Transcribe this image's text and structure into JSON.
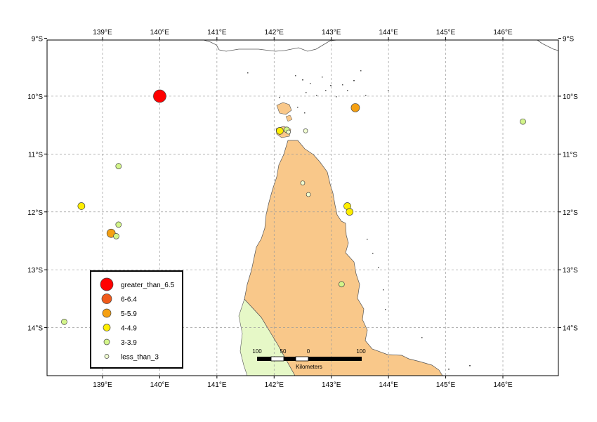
{
  "map": {
    "lon_ticks": [
      "139°E",
      "140°E",
      "141°E",
      "142°E",
      "143°E",
      "144°E",
      "145°E",
      "146°E"
    ],
    "lat_ticks": [
      "9°S",
      "10°S",
      "11°S",
      "12°S",
      "13°S",
      "14°S"
    ],
    "lon_values": [
      139,
      140,
      141,
      142,
      143,
      144,
      145,
      146
    ],
    "lat_values": [
      -9,
      -10,
      -11,
      -12,
      -13,
      -14
    ],
    "extent": {
      "lon_min": 138.03,
      "lon_max": 146.97,
      "lat_min": -14.83,
      "lat_max": -9.03
    },
    "colors": {
      "land": "#f9c88a",
      "land_green": "#e6f8c7",
      "coastline": "#555555",
      "grid": "#9a9a9a"
    }
  },
  "legend": {
    "items": [
      {
        "label": "greater_than_6.5",
        "color": "#ff0000",
        "size": 9
      },
      {
        "label": "6-6.4",
        "color": "#f05a1a",
        "size": 7
      },
      {
        "label": "5-5.9",
        "color": "#f5a012",
        "size": 6
      },
      {
        "label": "4-4.9",
        "color": "#ffee00",
        "size": 5
      },
      {
        "label": "3-3.9",
        "color": "#d3f58a",
        "size": 4
      },
      {
        "label": "less_than_3",
        "color": "#f0ffd0",
        "size": 3
      }
    ]
  },
  "scale_bar": {
    "labels": [
      "100",
      "50",
      "0",
      "100"
    ],
    "unit": "Kilometers"
  },
  "events": [
    {
      "lon": 140.0,
      "lat": -10.0,
      "class": 0
    },
    {
      "lon": 143.42,
      "lat": -10.2,
      "class": 2
    },
    {
      "lon": 142.1,
      "lat": -10.6,
      "class": 3
    },
    {
      "lon": 142.22,
      "lat": -10.58,
      "class": 4
    },
    {
      "lon": 142.25,
      "lat": -10.62,
      "class": 5
    },
    {
      "lon": 142.55,
      "lat": -10.6,
      "class": 5
    },
    {
      "lon": 146.35,
      "lat": -10.44,
      "class": 4
    },
    {
      "lon": 139.28,
      "lat": -11.21,
      "class": 4
    },
    {
      "lon": 142.5,
      "lat": -11.5,
      "class": 5
    },
    {
      "lon": 142.6,
      "lat": -11.7,
      "class": 5
    },
    {
      "lon": 138.63,
      "lat": -11.9,
      "class": 3
    },
    {
      "lon": 143.28,
      "lat": -11.9,
      "class": 3
    },
    {
      "lon": 143.32,
      "lat": -12.0,
      "class": 3
    },
    {
      "lon": 139.28,
      "lat": -12.22,
      "class": 4
    },
    {
      "lon": 139.15,
      "lat": -12.37,
      "class": 2
    },
    {
      "lon": 139.24,
      "lat": -12.42,
      "class": 4
    },
    {
      "lon": 143.18,
      "lat": -13.25,
      "class": 4
    },
    {
      "lon": 138.33,
      "lat": -13.9,
      "class": 4
    }
  ]
}
